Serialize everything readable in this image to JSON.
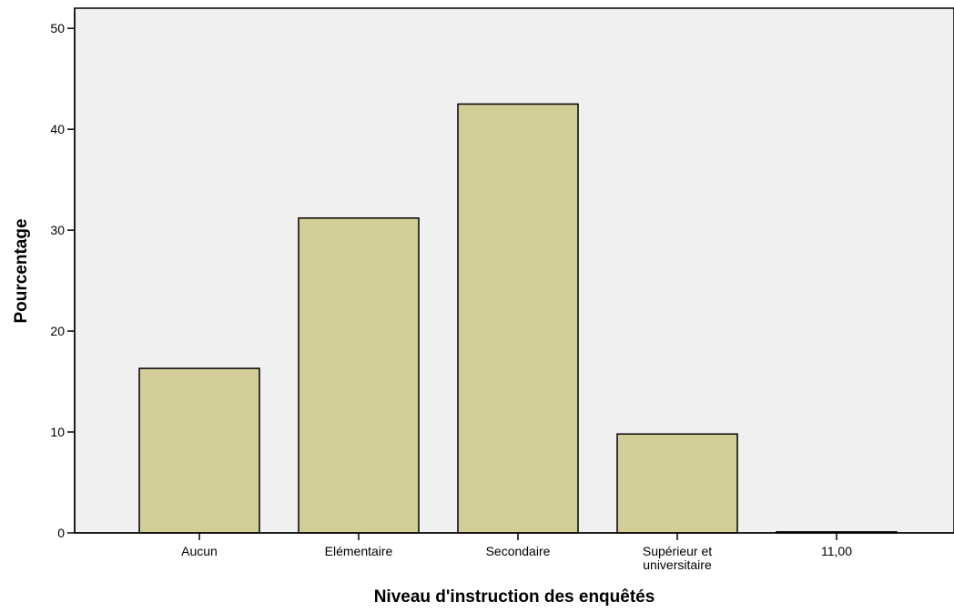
{
  "chart_data": {
    "type": "bar",
    "xlabel": "Niveau d'instruction des enquêtés",
    "ylabel": "Pourcentage",
    "categories": [
      "Aucun",
      "Elémentaire",
      "Secondaire",
      "Supérieur et universitaire",
      "11,00"
    ],
    "category_lines": [
      [
        "Aucun"
      ],
      [
        "Elémentaire"
      ],
      [
        "Secondaire"
      ],
      [
        "Supérieur et",
        "universitaire"
      ],
      [
        "11,00"
      ]
    ],
    "values": [
      16.3,
      31.2,
      42.5,
      9.8,
      0.1
    ],
    "ylim": [
      0,
      52
    ],
    "yticks": [
      0,
      10,
      20,
      30,
      40,
      50
    ],
    "grid": false,
    "legend": "none",
    "colors": {
      "bar_fill": "#d3ce97",
      "bar_stroke": "#000000",
      "plot_background": "#f0f0f0",
      "page_background": "#ffffff"
    }
  }
}
